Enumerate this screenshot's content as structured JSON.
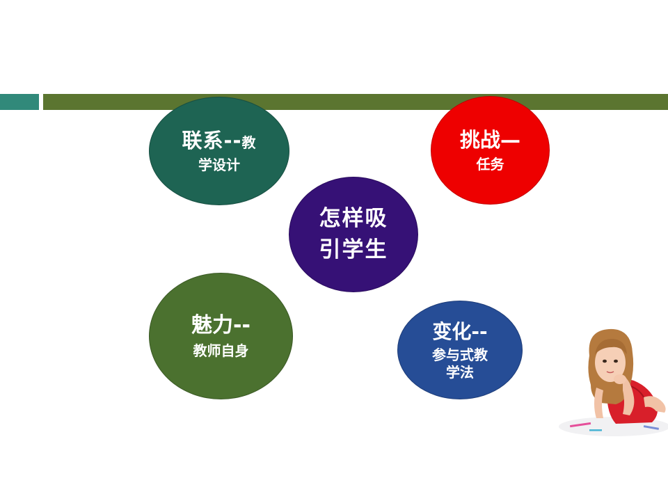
{
  "slide": {
    "circles": {
      "connect": {
        "line1": "联系--",
        "line1_tail": "教",
        "line2": "学设计",
        "color": "#1e6453"
      },
      "challenge": {
        "line1": "挑战—",
        "line2": "任务",
        "color": "#ee0000"
      },
      "center": {
        "line1": "怎样吸",
        "line2": "引学生",
        "color": "#361176"
      },
      "charm": {
        "line1": "魅力--",
        "line2": "教师自身",
        "color": "#4b712f"
      },
      "change": {
        "line1": "变化--",
        "line2": "参与式教",
        "line3": "学法",
        "color": "#264d96"
      }
    },
    "header_bar": {
      "teal": "#31897a",
      "olive": "#5b7530"
    },
    "photo": {
      "subject": "girl-lying-thinking-photo"
    }
  }
}
